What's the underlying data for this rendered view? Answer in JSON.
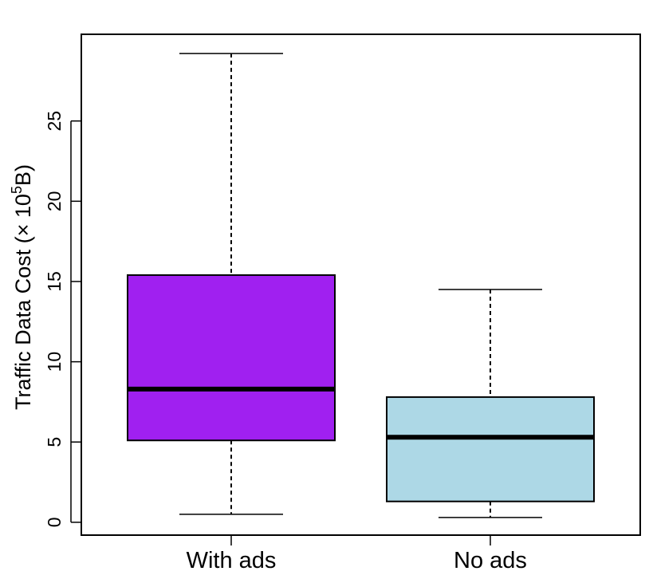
{
  "chart_data": {
    "type": "boxplot",
    "title": "",
    "xlabel": "",
    "ylabel": "Traffic Data Cost (× 10",
    "ylabel_sup": "5",
    "ylabel_tail": "B)",
    "ylim": [
      -0.8,
      30.4
    ],
    "yticks": [
      0,
      5,
      10,
      15,
      20,
      25
    ],
    "categories": [
      "With ads",
      "No ads"
    ],
    "boxes": [
      {
        "category": "With ads",
        "min": 0.5,
        "q1": 5.1,
        "median": 8.3,
        "q3": 15.4,
        "max": 29.2,
        "color": "#a020f0"
      },
      {
        "category": "No ads",
        "min": 0.3,
        "q1": 1.3,
        "median": 5.3,
        "q3": 7.8,
        "max": 14.5,
        "color": "#add8e6"
      }
    ],
    "grid": false
  }
}
